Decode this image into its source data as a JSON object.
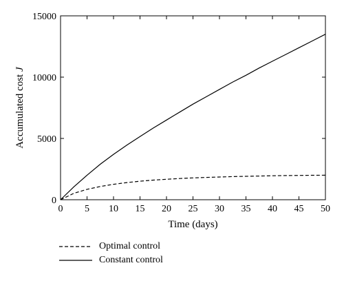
{
  "chart_data": {
    "type": "line",
    "title": "",
    "xlabel": "Time (days)",
    "ylabel_main": "Accumulated cost ",
    "ylabel_symbol": "J",
    "xlim": [
      0,
      50
    ],
    "ylim": [
      0,
      15000
    ],
    "xticks": [
      "0",
      "5",
      "10",
      "15",
      "20",
      "25",
      "30",
      "35",
      "40",
      "45",
      "50"
    ],
    "yticks": [
      "0",
      "5000",
      "10000",
      "15000"
    ],
    "grid": false,
    "legend_placement": "below",
    "x": [
      0,
      2.5,
      5,
      7.5,
      10,
      12.5,
      15,
      17.5,
      20,
      22.5,
      25,
      27.5,
      30,
      32.5,
      35,
      37.5,
      40,
      42.5,
      45,
      47.5,
      50
    ],
    "series": [
      {
        "name": "Optimal control",
        "style": "dashed",
        "values": [
          0,
          520,
          850,
          1080,
          1260,
          1400,
          1510,
          1600,
          1670,
          1730,
          1780,
          1820,
          1855,
          1885,
          1910,
          1935,
          1955,
          1970,
          1985,
          1995,
          2000
        ]
      },
      {
        "name": "Constant control",
        "style": "solid",
        "values": [
          0,
          1050,
          2000,
          2900,
          3700,
          4450,
          5150,
          5850,
          6500,
          7150,
          7800,
          8400,
          9000,
          9600,
          10150,
          10750,
          11300,
          11850,
          12400,
          12950,
          13500
        ]
      }
    ]
  }
}
